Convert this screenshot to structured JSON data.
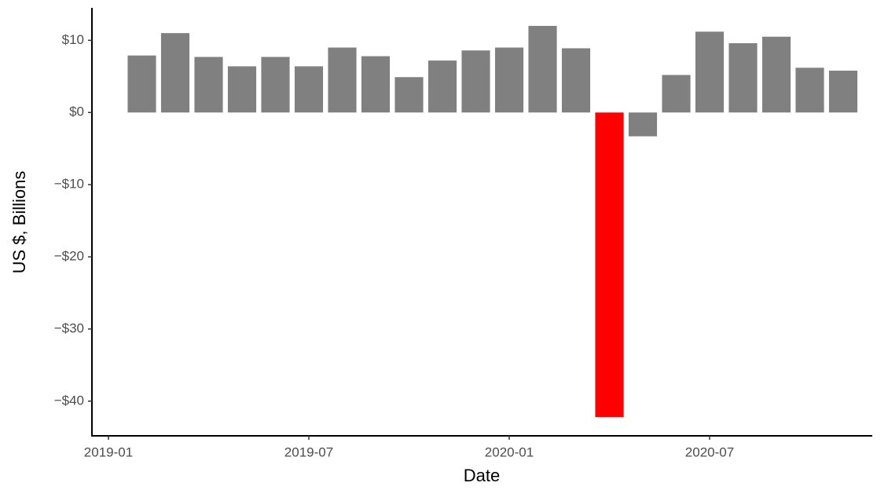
{
  "chart_data": {
    "type": "bar",
    "x_label": "Date",
    "y_label": "US $, Billions",
    "x": [
      "2019-02",
      "2019-03",
      "2019-04",
      "2019-05",
      "2019-06",
      "2019-07",
      "2019-08",
      "2019-09",
      "2019-10",
      "2019-11",
      "2019-12",
      "2020-01",
      "2020-02",
      "2020-03",
      "2020-04",
      "2020-05",
      "2020-06",
      "2020-07",
      "2020-08",
      "2020-09",
      "2020-10",
      "2020-11"
    ],
    "values": [
      7.9,
      11.0,
      7.7,
      6.4,
      7.7,
      6.4,
      9.0,
      7.8,
      4.9,
      7.2,
      8.6,
      9.0,
      12.0,
      8.9,
      -42.2,
      -3.3,
      5.2,
      11.2,
      9.6,
      10.5,
      6.2,
      5.8
    ],
    "colors": [
      "#808080",
      "#808080",
      "#808080",
      "#808080",
      "#808080",
      "#808080",
      "#808080",
      "#808080",
      "#808080",
      "#808080",
      "#808080",
      "#808080",
      "#808080",
      "#808080",
      "#ff0000",
      "#808080",
      "#808080",
      "#808080",
      "#808080",
      "#808080",
      "#808080",
      "#808080"
    ],
    "ylim": [
      -44.8,
      14.5
    ],
    "yticks": [
      {
        "value": 10,
        "label": "$10"
      },
      {
        "value": 0,
        "label": "$0"
      },
      {
        "value": -10,
        "label": "−$10"
      },
      {
        "value": -20,
        "label": "−$20"
      },
      {
        "value": -30,
        "label": "−$30"
      },
      {
        "value": -40,
        "label": "−$40"
      }
    ],
    "xticks": [
      "2019-01",
      "2019-07",
      "2020-01",
      "2020-07"
    ],
    "grid": false
  }
}
